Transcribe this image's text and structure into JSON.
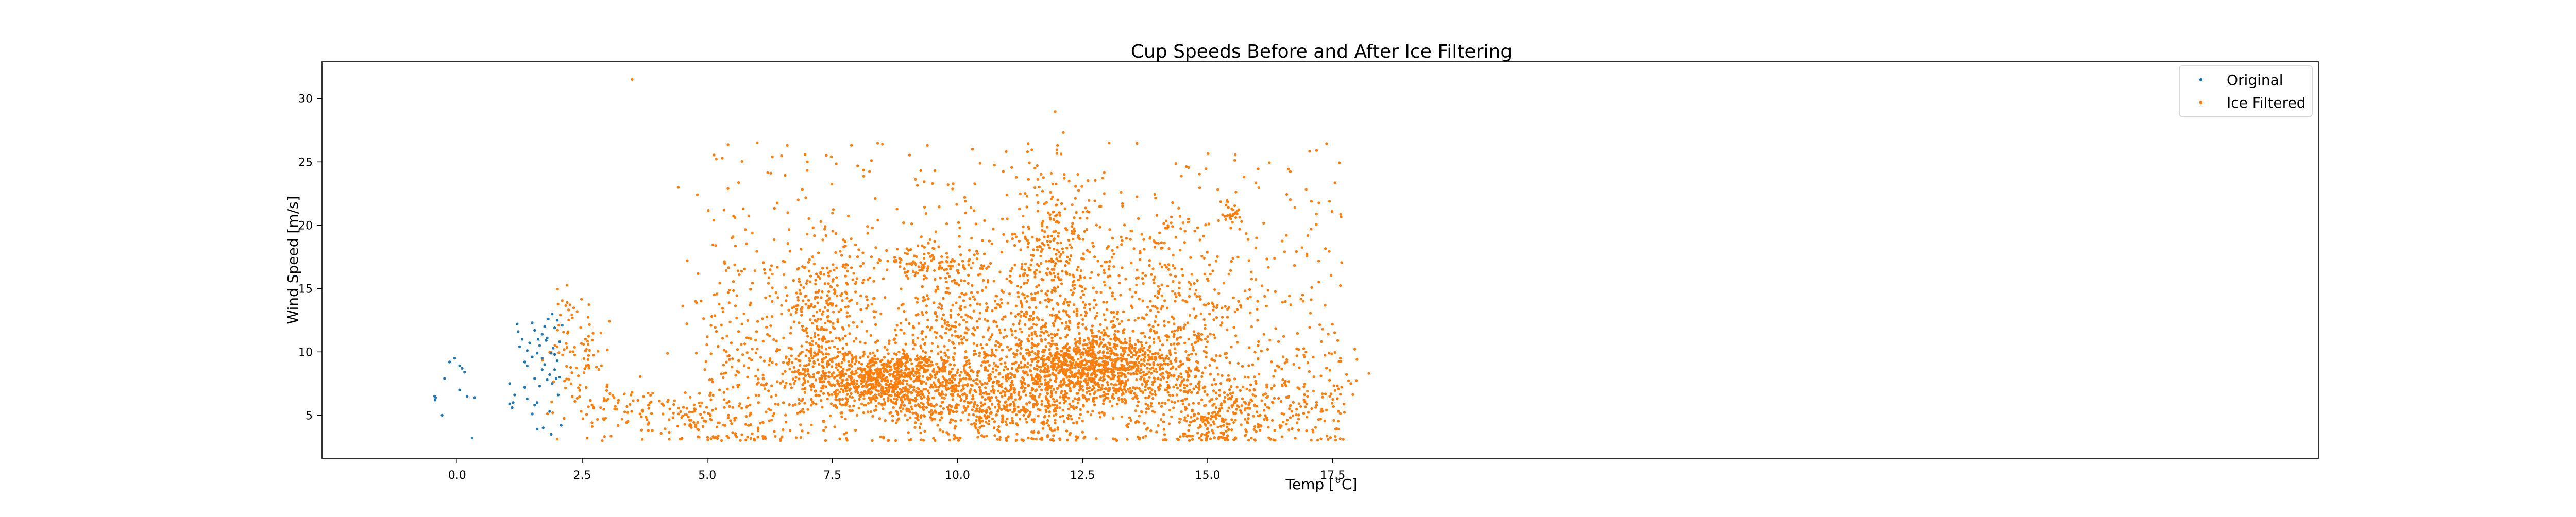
{
  "chart_data": {
    "type": "scatter",
    "title": "Cup Speeds Before and After Ice Filtering",
    "xlabel": "Temp [°C]",
    "ylabel": "Wind Speed [m/s]",
    "xlim": [
      -2.7,
      37.2
    ],
    "ylim": [
      1.6,
      32.9
    ],
    "x_ticks": [
      0.0,
      2.5,
      5.0,
      7.5,
      10.0,
      12.5,
      15.0,
      17.5
    ],
    "x_tick_labels": [
      "0.0",
      "2.5",
      "5.0",
      "7.5",
      "10.0",
      "12.5",
      "15.0",
      "17.5"
    ],
    "y_ticks": [
      5,
      10,
      15,
      20,
      25,
      30
    ],
    "y_tick_labels": [
      "5",
      "10",
      "15",
      "20",
      "25",
      "30"
    ],
    "grid": false,
    "legend_position": "upper right",
    "colors": {
      "original": "#1f77b4",
      "ice_filtered": "#ff7f0e"
    },
    "series": [
      {
        "name": "Original",
        "color": "#1f77b4",
        "points": [
          [
            -0.45,
            6.5
          ],
          [
            -0.44,
            6.2
          ],
          [
            -0.43,
            6.4
          ],
          [
            -0.3,
            5.0
          ],
          [
            -0.25,
            7.9
          ],
          [
            -0.15,
            9.2
          ],
          [
            -0.05,
            9.5
          ],
          [
            0.05,
            8.9
          ],
          [
            0.05,
            7.0
          ],
          [
            0.1,
            8.7
          ],
          [
            0.15,
            8.4
          ],
          [
            0.2,
            6.5
          ],
          [
            0.3,
            3.2
          ],
          [
            0.35,
            6.4
          ],
          [
            1.05,
            7.5
          ],
          [
            1.05,
            5.9
          ],
          [
            1.1,
            5.6
          ],
          [
            1.12,
            6.0
          ],
          [
            1.15,
            6.6
          ],
          [
            1.2,
            12.2
          ],
          [
            1.22,
            11.6
          ],
          [
            1.25,
            10.4
          ],
          [
            1.3,
            11.0
          ],
          [
            1.35,
            9.2
          ],
          [
            1.35,
            7.2
          ],
          [
            1.4,
            8.9
          ],
          [
            1.4,
            6.3
          ],
          [
            1.45,
            10.7
          ],
          [
            1.5,
            9.6
          ],
          [
            1.5,
            5.1
          ],
          [
            1.5,
            12.3
          ],
          [
            1.55,
            11.7
          ],
          [
            1.55,
            7.9
          ],
          [
            1.6,
            9.9
          ],
          [
            1.6,
            3.9
          ],
          [
            1.6,
            6.0
          ],
          [
            1.62,
            11.0
          ],
          [
            1.65,
            10.5
          ],
          [
            1.7,
            8.6
          ],
          [
            1.7,
            11.4
          ],
          [
            1.72,
            4.0
          ],
          [
            1.75,
            12.0
          ],
          [
            1.75,
            9.0
          ],
          [
            1.78,
            10.9
          ],
          [
            1.8,
            7.8
          ],
          [
            1.8,
            11.1
          ],
          [
            1.82,
            12.6
          ],
          [
            1.85,
            8.2
          ],
          [
            1.85,
            5.3
          ],
          [
            1.88,
            9.9
          ],
          [
            1.9,
            7.5
          ],
          [
            1.9,
            13.0
          ],
          [
            1.92,
            10.3
          ],
          [
            1.95,
            8.6
          ],
          [
            1.95,
            11.9
          ],
          [
            1.98,
            7.9
          ],
          [
            2.0,
            12.5
          ],
          [
            2.0,
            9.3
          ],
          [
            2.02,
            6.6
          ],
          [
            2.05,
            10.8
          ],
          [
            2.05,
            8.0
          ],
          [
            2.08,
            4.2
          ],
          [
            2.1,
            12.1
          ],
          [
            1.88,
            3.5
          ],
          [
            1.7,
            9.5
          ],
          [
            1.55,
            5.8
          ],
          [
            1.4,
            10.1
          ],
          [
            1.65,
            7.3
          ],
          [
            1.95,
            9.8
          ]
        ]
      },
      {
        "name": "Ice Filtered",
        "color": "#ff7f0e",
        "clusters": [
          {
            "cx": 2.4,
            "cy": 9.8,
            "sx": 0.3,
            "sy": 2.6,
            "n": 90
          },
          {
            "cx": 3.3,
            "cy": 5.8,
            "sx": 0.6,
            "sy": 1.0,
            "n": 70
          },
          {
            "cx": 4.6,
            "cy": 4.6,
            "sx": 0.6,
            "sy": 1.0,
            "n": 70
          },
          {
            "cx": 5.7,
            "cy": 8.6,
            "sx": 0.6,
            "sy": 5.0,
            "n": 180
          },
          {
            "cx": 7.3,
            "cy": 13.0,
            "sx": 0.45,
            "sy": 3.3,
            "n": 300
          },
          {
            "cx": 8.2,
            "cy": 7.9,
            "sx": 0.9,
            "sy": 1.3,
            "n": 700
          },
          {
            "cx": 9.0,
            "cy": 7.0,
            "sx": 0.5,
            "sy": 1.5,
            "n": 260
          },
          {
            "cx": 9.3,
            "cy": 17.1,
            "sx": 0.45,
            "sy": 0.7,
            "n": 90
          },
          {
            "cx": 10.0,
            "cy": 12.0,
            "sx": 0.8,
            "sy": 3.5,
            "n": 360
          },
          {
            "cx": 10.8,
            "cy": 6.2,
            "sx": 0.8,
            "sy": 1.6,
            "n": 420
          },
          {
            "cx": 11.8,
            "cy": 11.5,
            "sx": 0.6,
            "sy": 4.5,
            "n": 420
          },
          {
            "cx": 12.0,
            "cy": 19.5,
            "sx": 0.45,
            "sy": 3.0,
            "n": 150
          },
          {
            "cx": 12.5,
            "cy": 8.6,
            "sx": 0.7,
            "sy": 1.3,
            "n": 560
          },
          {
            "cx": 13.2,
            "cy": 9.4,
            "sx": 0.7,
            "sy": 2.2,
            "n": 460
          },
          {
            "cx": 13.9,
            "cy": 17.0,
            "sx": 0.5,
            "sy": 2.2,
            "n": 120
          },
          {
            "cx": 14.4,
            "cy": 8.2,
            "sx": 0.6,
            "sy": 2.7,
            "n": 220
          },
          {
            "cx": 15.3,
            "cy": 4.8,
            "sx": 0.5,
            "sy": 1.4,
            "n": 170
          },
          {
            "cx": 15.2,
            "cy": 13.0,
            "sx": 0.5,
            "sy": 4.0,
            "n": 110
          },
          {
            "cx": 15.5,
            "cy": 20.8,
            "sx": 0.12,
            "sy": 0.4,
            "n": 28
          },
          {
            "cx": 16.6,
            "cy": 6.6,
            "sx": 0.6,
            "sy": 2.2,
            "n": 120
          },
          {
            "cx": 17.4,
            "cy": 6.8,
            "sx": 0.3,
            "sy": 2.5,
            "n": 45
          }
        ],
        "background": {
          "x_range": [
            5.0,
            17.7
          ],
          "y_range": [
            3.0,
            26.5
          ],
          "n": 700
        },
        "outliers": [
          [
            3.5,
            31.5
          ],
          [
            4.8,
            22.4
          ],
          [
            5.3,
            25.3
          ],
          [
            4.6,
            17.2
          ],
          [
            5.0,
            11.2
          ],
          [
            6.0,
            26.5
          ],
          [
            6.6,
            26.3
          ],
          [
            8.5,
            26.4
          ],
          [
            9.4,
            26.3
          ],
          [
            12.0,
            26.3
          ],
          [
            10.3,
            26.0
          ],
          [
            14.8,
            19.8
          ],
          [
            16.0,
            14.0
          ],
          [
            17.3,
            11.8
          ],
          [
            17.6,
            10.9
          ],
          [
            2.6,
            3.2
          ],
          [
            2.9,
            3.0
          ],
          [
            3.7,
            3.1
          ],
          [
            2.2,
            13.9
          ],
          [
            3.0,
            7.4
          ],
          [
            6.3,
            25.4
          ],
          [
            7.0,
            25.0
          ],
          [
            11.4,
            25.8
          ],
          [
            13.3,
            21.5
          ],
          [
            16.2,
            10.2
          ]
        ]
      }
    ]
  }
}
